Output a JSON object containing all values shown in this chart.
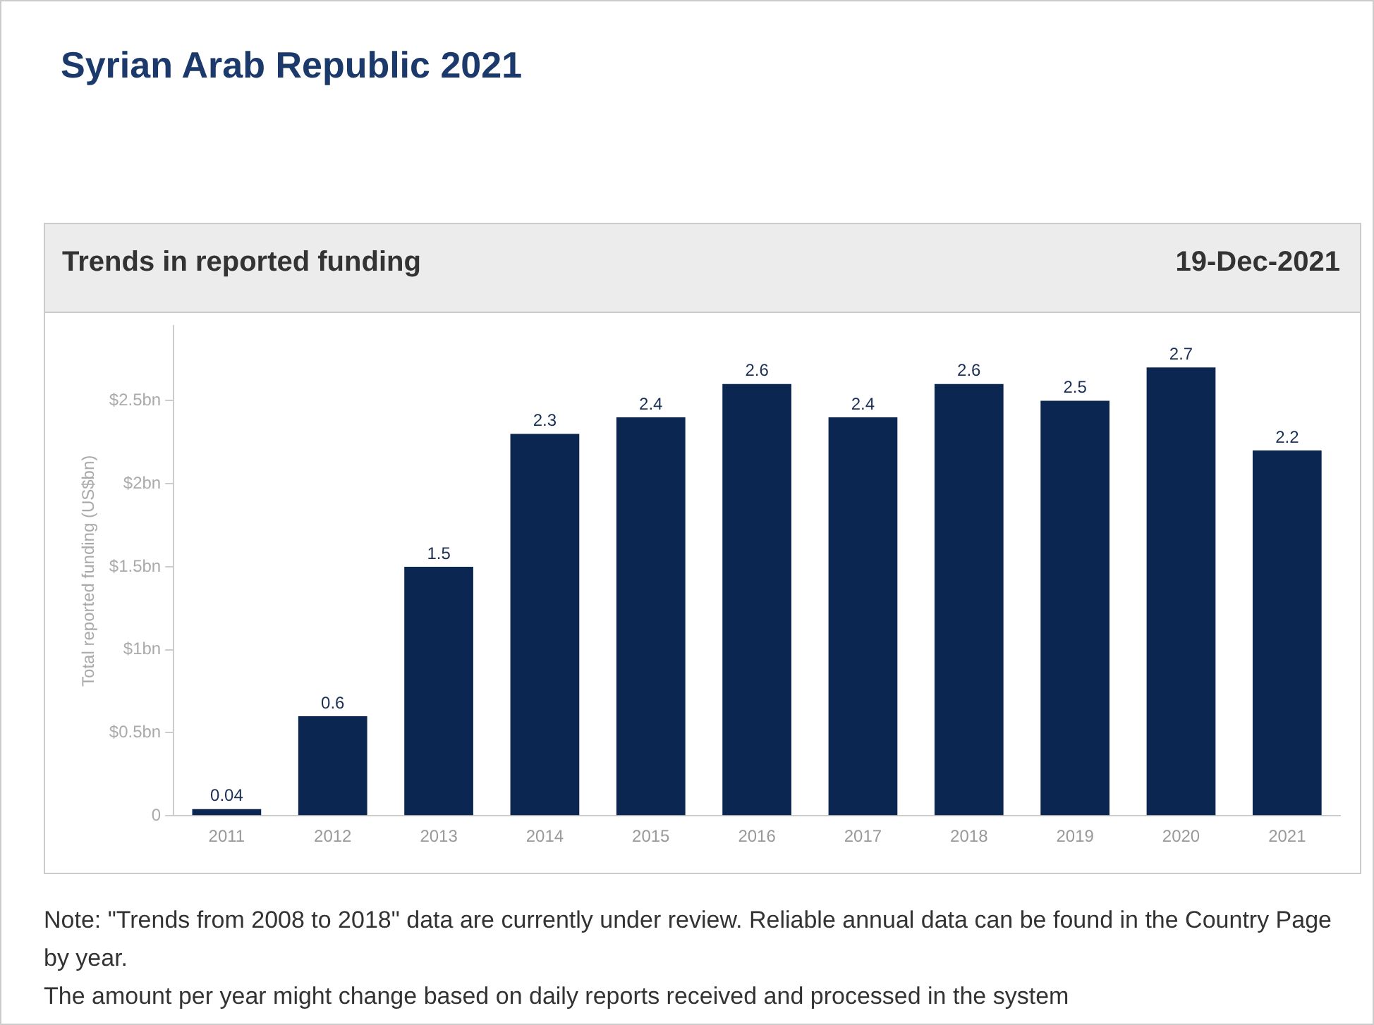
{
  "chart_data": {
    "type": "bar",
    "title": "Syrian Arab Republic 2021",
    "subtitle": "Trends in reported funding",
    "ylabel": "Total reported funding (US$bn)",
    "categories": [
      "2011",
      "2012",
      "2013",
      "2014",
      "2015",
      "2016",
      "2017",
      "2018",
      "2019",
      "2020",
      "2021"
    ],
    "values": [
      0.04,
      0.6,
      1.5,
      2.3,
      2.4,
      2.6,
      2.4,
      2.6,
      2.5,
      2.7,
      2.2
    ],
    "color": "#0b2751",
    "data_labels": true,
    "ylim": [
      0,
      2.95
    ],
    "yticks": [
      {
        "value": 0,
        "label": "0"
      },
      {
        "value": 0.5,
        "label": "$0.5bn"
      },
      {
        "value": 1,
        "label": "$1bn"
      },
      {
        "value": 1.5,
        "label": "$1.5bn"
      },
      {
        "value": 2,
        "label": "$2bn"
      },
      {
        "value": 2.5,
        "label": "$2.5bn"
      }
    ],
    "annotations": [
      "19-Dec-2021",
      "Note: \"Trends from 2008 to 2018\" data are currently under review. Reliable annual data can be found in the Country Page by year.",
      "The amount per year might change based on daily reports received and processed in the system"
    ]
  }
}
